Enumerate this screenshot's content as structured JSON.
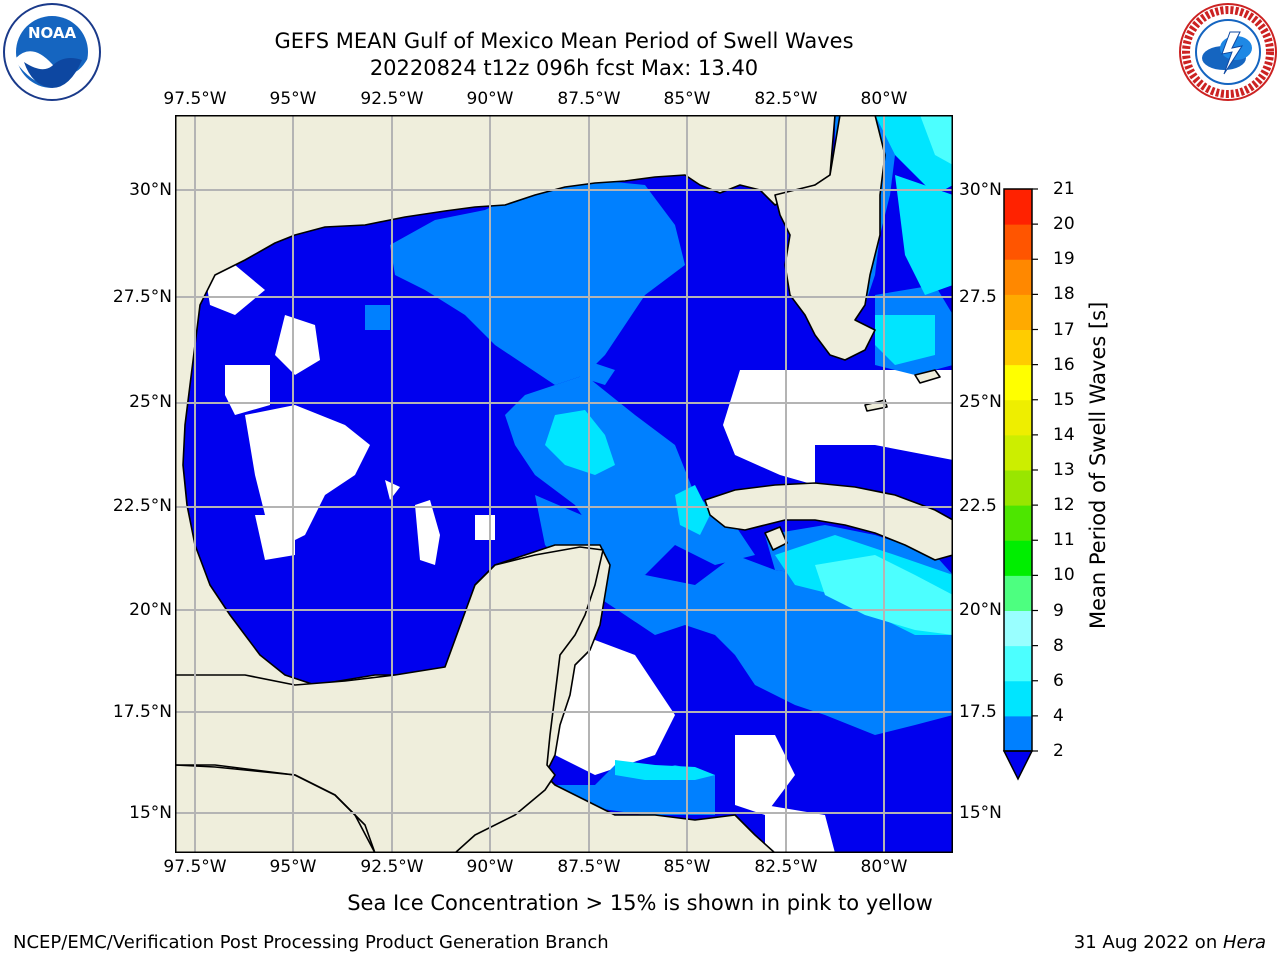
{
  "header": {
    "title_line1": "GEFS MEAN Gulf of Mexico Mean Period of Swell Waves",
    "title_line2": "20220824 t12z 096h fcst   Max: 13.40"
  },
  "logos": {
    "left": {
      "icon": "noaa-logo-icon",
      "text": "NOAA",
      "ring_text": "NATIONAL OCEANIC AND ATMOSPHERIC ADMINISTRATION · U.S. DEPARTMENT OF COMMERCE"
    },
    "right": {
      "icon": "nws-logo-icon",
      "ring_text": "NATIONAL WEATHER SERVICE"
    }
  },
  "map": {
    "lon_ticks": [
      "97.5°W",
      "95°W",
      "92.5°W",
      "90°W",
      "87.5°W",
      "85°W",
      "82.5°W",
      "80°W"
    ],
    "lat_ticks_left": [
      "30°N",
      "27.5°N",
      "25°N",
      "22.5°N",
      "20°N",
      "17.5°N",
      "15°N"
    ],
    "lat_ticks_right": [
      "30°N",
      "27.5",
      "25°N",
      "22.5",
      "20°N",
      "17.5",
      "15°N"
    ],
    "lon_range": [
      -98,
      -78.3
    ],
    "lat_range": [
      14,
      31.8
    ],
    "colors": {
      "land": "#efeedc",
      "missing": "#ffffff",
      "grid": "#b4b4b4"
    }
  },
  "colorbar": {
    "title": "Mean Period of Swell Waves [s]",
    "ticks": [
      "2",
      "4",
      "6",
      "8",
      "9",
      "10",
      "11",
      "12",
      "13",
      "14",
      "15",
      "16",
      "17",
      "18",
      "19",
      "20",
      "21"
    ],
    "colors": [
      "#0000ee",
      "#0080ff",
      "#00e5ff",
      "#4cffff",
      "#99ffff",
      "#4dff80",
      "#00ee00",
      "#4de600",
      "#99e600",
      "#ccee00",
      "#eeee00",
      "#ffff00",
      "#ffcc00",
      "#ffaa00",
      "#ff8800",
      "#ff5500",
      "#ff2200",
      "#ff0000"
    ]
  },
  "footer": {
    "note": "Sea Ice Concentration > 15% is shown in pink to yellow",
    "credit": "NCEP/EMC/Verification Post Processing Product Generation Branch",
    "date_prefix": "31 Aug 2022 on ",
    "host": "Hera"
  }
}
